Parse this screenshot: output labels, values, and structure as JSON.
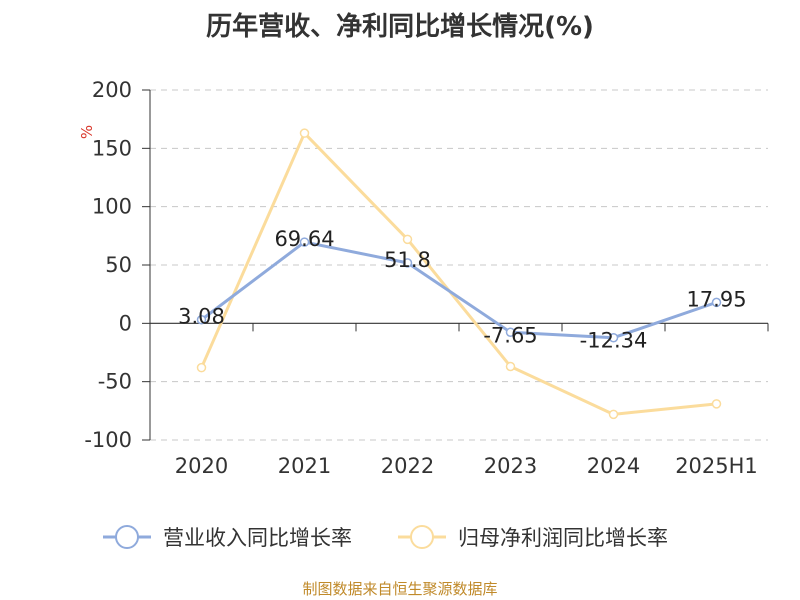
{
  "page": {
    "title": "历年营收、净利同比增长情况(%)",
    "footer": "制图数据来自恒生聚源数据库"
  },
  "chart_data": {
    "type": "line",
    "title": "历年营收、净利同比增长情况(%)",
    "ylabel": "%",
    "xlabel": "",
    "categories": [
      "2020",
      "2021",
      "2022",
      "2023",
      "2024",
      "2025H1"
    ],
    "ylim": [
      -100,
      200
    ],
    "yticks": [
      200,
      150,
      100,
      50,
      0,
      -50,
      -100
    ],
    "grid": true,
    "legend_position": "bottom",
    "series": [
      {
        "name": "营业收入同比增长率",
        "color": "#8faadc",
        "values": [
          3.08,
          69.64,
          51.8,
          -7.65,
          -12.34,
          17.95
        ],
        "labels": [
          "3.08",
          "69.64",
          "51.8",
          "-7.65",
          "-12.34",
          "17.95"
        ]
      },
      {
        "name": "归母净利润同比增长率",
        "color": "#fbdc9c",
        "values": [
          -38,
          163,
          72,
          -37,
          -78,
          -69
        ],
        "labels": []
      }
    ]
  }
}
